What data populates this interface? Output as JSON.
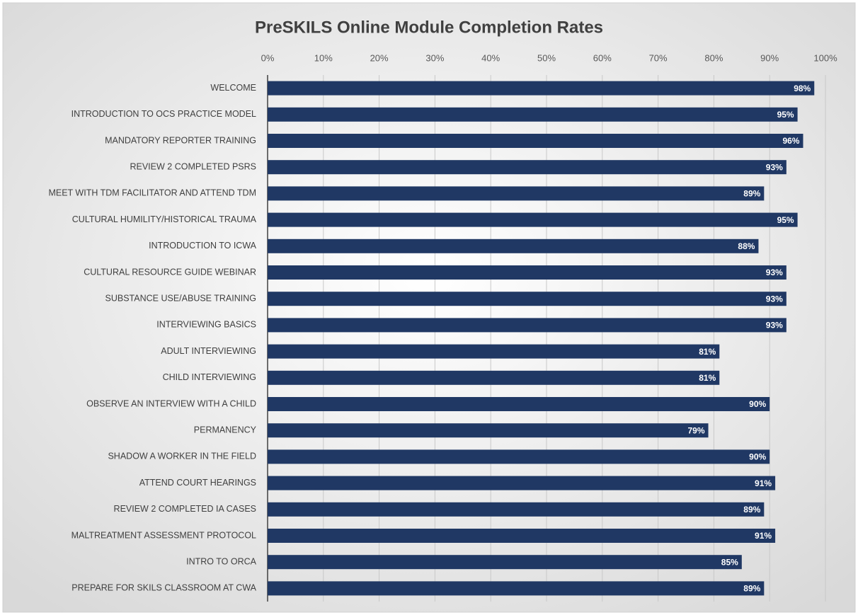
{
  "chart_data": {
    "type": "barh",
    "title": "PreSKILS Online Module Completion Rates",
    "categories": [
      "WELCOME",
      "INTRODUCTION TO OCS PRACTICE MODEL",
      "MANDATORY REPORTER TRAINING",
      "REVIEW 2 COMPLETED PSRS",
      "MEET WITH TDM FACILITATOR AND ATTEND TDM",
      "CULTURAL HUMILITY/HISTORICAL TRAUMA",
      "INTRODUCTION TO ICWA",
      "CULTURAL RESOURCE GUIDE WEBINAR",
      "SUBSTANCE USE/ABUSE TRAINING",
      "INTERVIEWING BASICS",
      "ADULT INTERVIEWING",
      "CHILD INTERVIEWING",
      "OBSERVE AN INTERVIEW WITH A CHILD",
      "PERMANENCY",
      "SHADOW A WORKER IN THE FIELD",
      "ATTEND COURT HEARINGS",
      "REVIEW 2 COMPLETED IA CASES",
      "MALTREATMENT ASSESSMENT PROTOCOL",
      "INTRO TO ORCA",
      "PREPARE FOR SKILS CLASSROOM AT CWA"
    ],
    "values": [
      98,
      95,
      96,
      93,
      89,
      95,
      88,
      93,
      93,
      93,
      81,
      81,
      90,
      79,
      90,
      91,
      89,
      91,
      85,
      89
    ],
    "value_labels": [
      "98%",
      "95%",
      "96%",
      "93%",
      "89%",
      "95%",
      "88%",
      "93%",
      "93%",
      "93%",
      "81%",
      "81%",
      "90%",
      "79%",
      "90%",
      "91%",
      "89%",
      "91%",
      "85%",
      "89%"
    ],
    "color": "#203864",
    "xlim": [
      0,
      100
    ],
    "xticks": [
      {
        "value": 0,
        "label": "0%"
      },
      {
        "value": 10,
        "label": "10%"
      },
      {
        "value": 20,
        "label": "20%"
      },
      {
        "value": 30,
        "label": "30%"
      },
      {
        "value": 40,
        "label": "40%"
      },
      {
        "value": 50,
        "label": "50%"
      },
      {
        "value": 60,
        "label": "60%"
      },
      {
        "value": 70,
        "label": "70%"
      },
      {
        "value": 80,
        "label": "80%"
      },
      {
        "value": 90,
        "label": "90%"
      },
      {
        "value": 100,
        "label": "100%"
      }
    ],
    "grid": true
  }
}
